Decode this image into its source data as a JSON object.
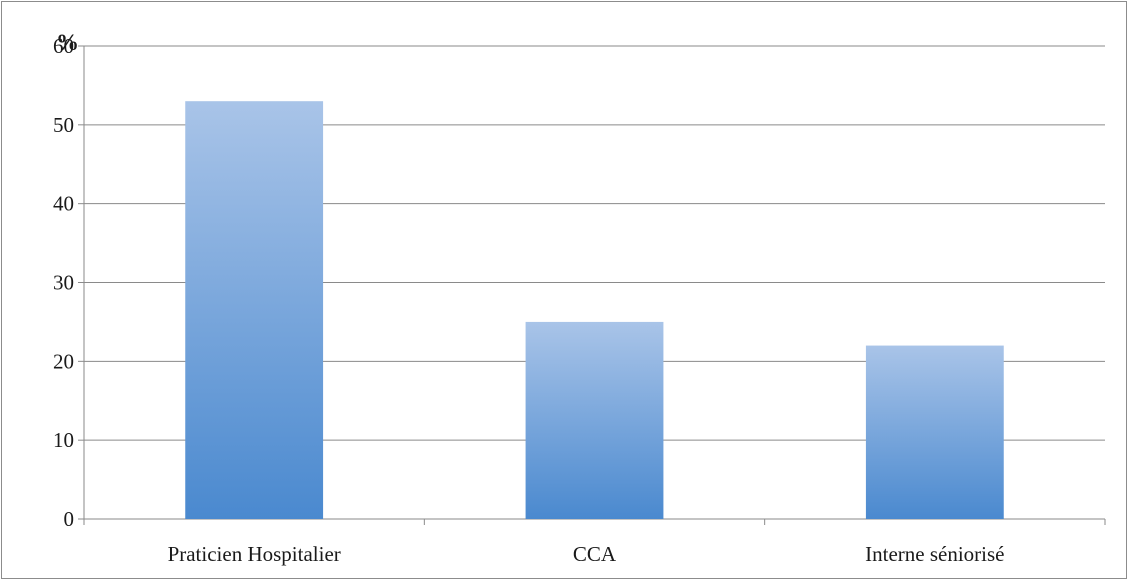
{
  "chart_data": {
    "type": "bar",
    "title": "",
    "xlabel": "",
    "ylabel": "",
    "unit_label": "%",
    "categories": [
      "Praticien Hospitalier",
      "CCA",
      "Interne séniorisé"
    ],
    "values": [
      53,
      25,
      22
    ],
    "ylim": [
      0,
      60
    ],
    "yticks": [
      "0",
      "10",
      "20",
      "30",
      "40",
      "50",
      "60"
    ],
    "grid": true,
    "legend": "none",
    "colors": {
      "bar_top": "#a9c4e8",
      "bar_bottom": "#4a89cf",
      "grid": "#8a8a8a",
      "border": "#8c8c8c"
    }
  }
}
